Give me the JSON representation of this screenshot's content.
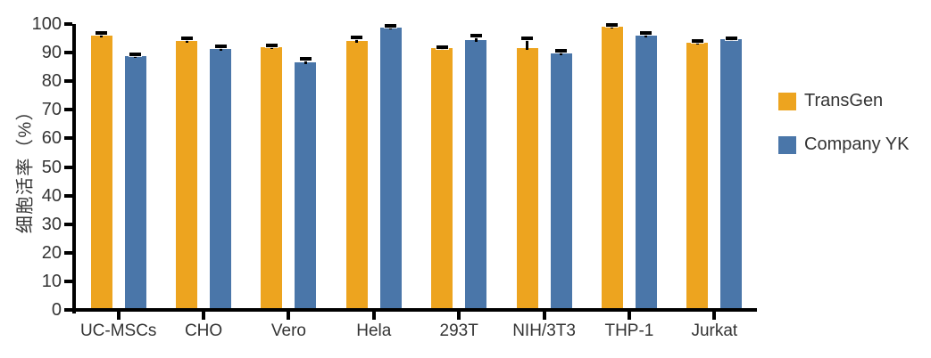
{
  "chart_data": {
    "type": "bar",
    "title": "",
    "ylabel": "细胞活率（%）",
    "xlabel": "",
    "ylim": [
      0,
      100
    ],
    "yticks": [
      0,
      10,
      20,
      30,
      40,
      50,
      60,
      70,
      80,
      90,
      100
    ],
    "grid": false,
    "legend_position": "right-center",
    "error_bars": true,
    "categories": [
      "UC-MSCs",
      "CHO",
      "Vero",
      "Hela",
      "293T",
      "NIH/3T3",
      "THP-1",
      "Jurkat"
    ],
    "series": [
      {
        "name": "TransGen",
        "color": "#EDA41F",
        "values": [
          96.0,
          94.0,
          91.9,
          94.1,
          91.5,
          91.6,
          99.2,
          93.5
        ],
        "errors": [
          0.8,
          0.9,
          0.7,
          1.1,
          0.5,
          3.3,
          0.6,
          0.6
        ]
      },
      {
        "name": "Company YK",
        "color": "#4A76A9",
        "values": [
          88.9,
          91.4,
          86.5,
          98.7,
          94.3,
          89.6,
          96.1,
          94.6
        ],
        "errors": [
          0.6,
          0.7,
          1.2,
          0.7,
          1.7,
          1.2,
          0.9,
          0.5
        ]
      }
    ],
    "error_bar_color": "#000000",
    "axis_color": "#000000",
    "text_color": "#343434"
  }
}
